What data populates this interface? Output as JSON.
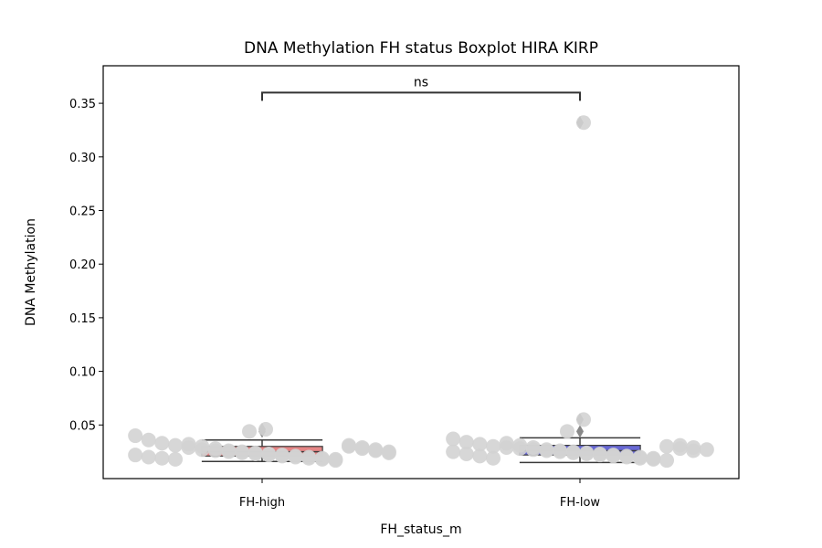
{
  "chart_data": {
    "type": "box",
    "title": "DNA Methylation FH status Boxplot HIRA KIRP",
    "xlabel": "FH_status_m",
    "ylabel": "DNA Methylation",
    "categories": [
      "FH-high",
      "FH-low"
    ],
    "ylim": [
      0.0,
      0.385
    ],
    "yticks": [
      0.05,
      0.1,
      0.15,
      0.2,
      0.25,
      0.3,
      0.35
    ],
    "ytick_labels": [
      "0.05",
      "0.10",
      "0.15",
      "0.20",
      "0.25",
      "0.30",
      "0.35"
    ],
    "grid": false,
    "boxes": [
      {
        "category": "FH-high",
        "color": "#e07070",
        "min": 0.016,
        "q1": 0.021,
        "median": 0.025,
        "q3": 0.03,
        "max": 0.036,
        "outliers": [
          0.044,
          0.046
        ],
        "points": [
          0.04,
          0.036,
          0.033,
          0.031,
          0.029,
          0.027,
          0.026,
          0.025,
          0.024,
          0.023,
          0.022,
          0.021,
          0.02,
          0.019,
          0.018,
          0.017,
          0.03,
          0.028,
          0.026,
          0.024,
          0.022,
          0.02,
          0.019,
          0.018,
          0.032,
          0.03,
          0.028,
          0.026,
          0.025,
          0.024,
          0.023,
          0.022,
          0.021,
          0.02,
          0.019,
          0.018,
          0.044,
          0.046,
          0.031,
          0.029,
          0.027,
          0.025
        ]
      },
      {
        "category": "FH-low",
        "color": "#4d4dcc",
        "min": 0.015,
        "q1": 0.022,
        "median": 0.026,
        "q3": 0.031,
        "max": 0.038,
        "outliers": [
          0.044,
          0.055,
          0.332
        ],
        "points": [
          0.037,
          0.034,
          0.032,
          0.03,
          0.029,
          0.028,
          0.027,
          0.026,
          0.025,
          0.024,
          0.023,
          0.022,
          0.021,
          0.02,
          0.019,
          0.018,
          0.017,
          0.031,
          0.029,
          0.027,
          0.025,
          0.023,
          0.021,
          0.019,
          0.033,
          0.031,
          0.029,
          0.027,
          0.026,
          0.025,
          0.024,
          0.023,
          0.022,
          0.021,
          0.02,
          0.019,
          0.044,
          0.055,
          0.332,
          0.03,
          0.028,
          0.026
        ]
      }
    ],
    "annotation": {
      "label": "ns",
      "between": [
        "FH-high",
        "FH-low"
      ],
      "y": 0.36
    },
    "colors": {
      "points": "#d3d3d3",
      "box_edge": "#3a3a3a",
      "sig_line": "#333333"
    }
  }
}
